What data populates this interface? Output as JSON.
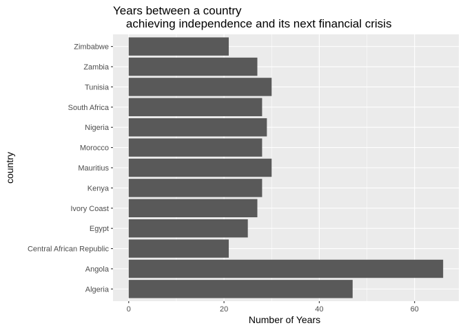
{
  "chart_data": {
    "type": "bar",
    "orientation": "horizontal",
    "title_lines": [
      "Years between a country",
      "    achieving independence and its next financial crisis"
    ],
    "xlabel": "Number of Years",
    "ylabel": "country",
    "categories": [
      "Algeria",
      "Angola",
      "Central African Republic",
      "Egypt",
      "Ivory Coast",
      "Kenya",
      "Mauritius",
      "Morocco",
      "Nigeria",
      "South Africa",
      "Tunisia",
      "Zambia",
      "Zimbabwe"
    ],
    "values": [
      47,
      66,
      21,
      25,
      27,
      28,
      30,
      28,
      29,
      28,
      30,
      27,
      21
    ],
    "xlim": [
      -3.3,
      69.3
    ],
    "xticks": [
      0,
      20,
      40,
      60
    ],
    "grid": true,
    "panel_background": "#ebebeb",
    "bar_color": "#595959",
    "grid_color": "#ffffff"
  }
}
